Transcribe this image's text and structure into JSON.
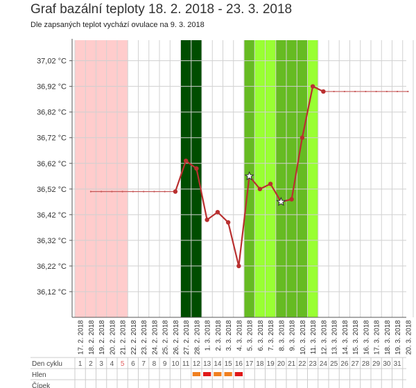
{
  "title": "Graf bazální teploty 18. 2. 2018 - 23. 3. 2018",
  "subtitle": "Dle zapsaných teplot vychází ovulace na 9. 3. 2018",
  "chart_data": {
    "type": "line",
    "ylim": [
      36.02,
      37.1
    ],
    "y_ticks": [
      "37,02 °C",
      "36,92 °C",
      "36,82 °C",
      "36,72 °C",
      "36,62 °C",
      "36,52 °C",
      "36,42 °C",
      "36,32 °C",
      "36,22 °C",
      "36,12 °C"
    ],
    "y_tick_values": [
      37.02,
      36.92,
      36.82,
      36.72,
      36.62,
      36.52,
      36.42,
      36.32,
      36.22,
      36.12
    ],
    "dates": [
      "17. 2. 2018",
      "18. 2. 2018",
      "19. 2. 2018",
      "20. 2. 2018",
      "21. 2. 2018",
      "22. 2. 2018",
      "23. 2. 2018",
      "24. 2. 2018",
      "25. 2. 2018",
      "26. 2. 2018",
      "27. 2. 2018",
      "28. 2. 2018",
      "1. 3. 2018",
      "2. 3. 2018",
      "3. 3. 2018",
      "4. 3. 2018",
      "5. 3. 2018",
      "6. 3. 2018",
      "7. 3. 2018",
      "8. 3. 2018",
      "9. 3. 2018",
      "10. 3. 2018",
      "11. 3. 2018",
      "12. 3. 2018",
      "13. 3. 2018",
      "14. 3. 2018",
      "15. 3. 2018",
      "16. 3. 2018",
      "17. 3. 2018",
      "18. 3. 2018",
      "19. 3. 2018",
      "20. 3. 2018"
    ],
    "temperatures": [
      {
        "date": "26. 2. 2018",
        "value": 36.51
      },
      {
        "date": "27. 2. 2018",
        "value": 36.63
      },
      {
        "date": "28. 2. 2018",
        "value": 36.6
      },
      {
        "date": "1. 3. 2018",
        "value": 36.4
      },
      {
        "date": "2. 3. 2018",
        "value": 36.43
      },
      {
        "date": "3. 3. 2018",
        "value": 36.39
      },
      {
        "date": "4. 3. 2018",
        "value": 36.22
      },
      {
        "date": "5. 3. 2018",
        "value": 36.57,
        "marker": "star"
      },
      {
        "date": "6. 3. 2018",
        "value": 36.52
      },
      {
        "date": "7. 3. 2018",
        "value": 36.54
      },
      {
        "date": "8. 3. 2018",
        "value": 36.47,
        "marker": "star"
      },
      {
        "date": "9. 3. 2018",
        "value": 36.48
      },
      {
        "date": "10. 3. 2018",
        "value": 36.72
      },
      {
        "date": "11. 3. 2018",
        "value": 36.92
      },
      {
        "date": "12. 3. 2018",
        "value": 36.9
      }
    ],
    "coverline_before": {
      "value": 36.51,
      "from": "18. 2. 2018",
      "to": "26. 2. 2018"
    },
    "coverline_after": {
      "value": 36.9,
      "from": "12. 3. 2018",
      "to": "20. 3. 2018"
    },
    "bands": [
      {
        "kind": "menstruation",
        "from": "17. 2. 2018",
        "to": "21. 2. 2018",
        "color": "#ffcccc"
      },
      {
        "kind": "dark-green",
        "from": "27. 2. 2018",
        "to": "28. 2. 2018",
        "color": "#004d00"
      },
      {
        "kind": "medium-green",
        "from": "5. 3. 2018",
        "to": "6. 3. 2018",
        "color": "#66bb22"
      },
      {
        "kind": "fertile-light",
        "from": "6. 3. 2018",
        "to": "11. 3. 2018",
        "color": "#99ff33"
      },
      {
        "kind": "fertile-strong",
        "from": "8. 3. 2018",
        "to": "10. 3. 2018",
        "color": "#66bb22"
      }
    ],
    "line_color": "#b93030",
    "cycle_day_label": "Den cyklu",
    "mucus_label": "Hlen",
    "cervix_label": "Čípek",
    "cycle_days": [
      "1",
      "2",
      "3",
      "4",
      "5",
      "6",
      "7",
      "8",
      "9",
      "10",
      "11",
      "12",
      "13",
      "14",
      "15",
      "16",
      "17",
      "18",
      "19",
      "20",
      "21",
      "22",
      "23",
      "24",
      "25",
      "26",
      "27",
      "28",
      "29",
      "30",
      "31"
    ],
    "highlighted_cycle_day": "5",
    "mucus_marks": [
      {
        "day": "12",
        "color": "#f08020"
      },
      {
        "day": "13",
        "color": "#e01818"
      },
      {
        "day": "14",
        "color": "#f08020"
      },
      {
        "day": "15",
        "color": "#f08020"
      },
      {
        "day": "16",
        "color": "#e01818"
      }
    ]
  }
}
